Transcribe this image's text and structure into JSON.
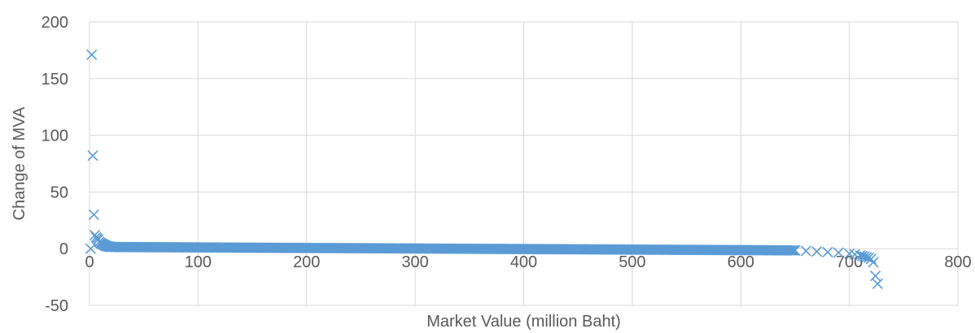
{
  "chart_data": {
    "type": "scatter",
    "title": "",
    "xlabel": "Market Value (million Baht)",
    "ylabel": "Change of MVA",
    "xlim": [
      0,
      800
    ],
    "ylim": [
      -50,
      200
    ],
    "xticks": [
      0,
      100,
      200,
      300,
      400,
      500,
      600,
      700,
      800
    ],
    "yticks": [
      -50,
      0,
      50,
      100,
      150,
      200
    ],
    "grid": true,
    "legend": "none",
    "marker": "x",
    "marker_color": "#5b9bd5",
    "series": [
      {
        "x": [
          1,
          2,
          3,
          4,
          5,
          6,
          7,
          8,
          9,
          10,
          11,
          12,
          13,
          14,
          15,
          16,
          17,
          18,
          19,
          20,
          650,
          660,
          670,
          680,
          690,
          700,
          705,
          710,
          712,
          714,
          716,
          718,
          720,
          722,
          724,
          726
        ],
        "y": [
          0,
          171,
          82,
          30,
          12,
          10,
          9,
          8,
          6,
          5,
          4.5,
          4,
          3.5,
          3,
          2.5,
          2.2,
          2,
          1.8,
          1.6,
          1.5,
          -1.5,
          -2,
          -2.5,
          -3,
          -3.5,
          -4.5,
          -5,
          -6,
          -6.5,
          -7,
          -7.5,
          -8,
          -9,
          -12,
          -24,
          -31
        ]
      }
    ],
    "dense_band": {
      "x_start": 20,
      "x_end": 650,
      "y_start": 1.5,
      "y_end": -1.5
    }
  }
}
